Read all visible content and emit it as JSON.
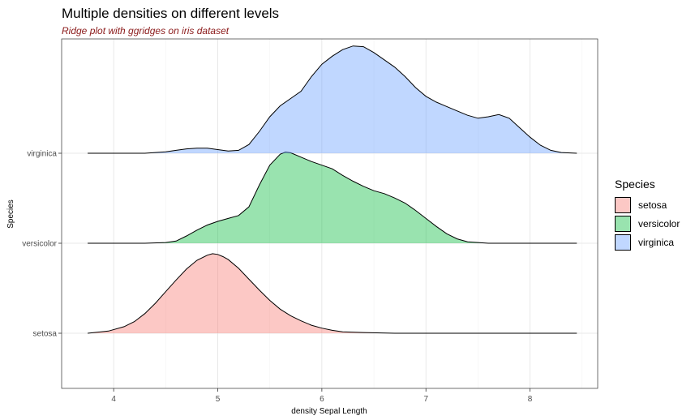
{
  "title": "Multiple densities on different levels",
  "subtitle": "Ridge plot with ggridges on iris dataset",
  "chart_data": {
    "type": "area",
    "title": "Multiple densities on different levels",
    "subtitle": "Ridge plot with ggridges on iris dataset",
    "xlabel": "density Sepal Length",
    "ylabel": "Species",
    "xlim": [
      3.5,
      8.65
    ],
    "x_ticks": [
      "4",
      "5",
      "6",
      "7",
      "8"
    ],
    "y_categories": [
      "setosa",
      "versicolor",
      "virginica"
    ],
    "grid": true,
    "legend": {
      "title": "Species",
      "position": "right"
    },
    "series": [
      {
        "name": "setosa",
        "color": "#f8766d",
        "x": [
          3.75,
          3.95,
          4.1,
          4.2,
          4.3,
          4.4,
          4.5,
          4.6,
          4.7,
          4.8,
          4.9,
          4.95,
          5.0,
          5.05,
          5.1,
          5.2,
          5.3,
          5.4,
          5.5,
          5.6,
          5.7,
          5.8,
          5.9,
          6.0,
          6.1,
          6.2,
          6.4,
          6.7,
          7.0,
          7.5,
          8.0,
          8.45
        ],
        "y": [
          0.0,
          0.03,
          0.09,
          0.16,
          0.27,
          0.41,
          0.57,
          0.73,
          0.88,
          1.0,
          1.07,
          1.09,
          1.08,
          1.05,
          1.01,
          0.89,
          0.74,
          0.59,
          0.45,
          0.33,
          0.24,
          0.17,
          0.11,
          0.07,
          0.04,
          0.02,
          0.01,
          0.0,
          0.0,
          0.0,
          0.0,
          0.0
        ]
      },
      {
        "name": "versicolor",
        "color": "#00ba38",
        "x": [
          3.75,
          4.3,
          4.5,
          4.6,
          4.7,
          4.8,
          4.9,
          5.0,
          5.1,
          5.2,
          5.3,
          5.4,
          5.5,
          5.6,
          5.65,
          5.7,
          5.8,
          5.9,
          6.0,
          6.1,
          6.2,
          6.3,
          6.4,
          6.5,
          6.6,
          6.7,
          6.8,
          6.9,
          7.0,
          7.1,
          7.2,
          7.3,
          7.4,
          7.6,
          8.0,
          8.45
        ],
        "y": [
          0.0,
          0.0,
          0.01,
          0.03,
          0.1,
          0.18,
          0.25,
          0.3,
          0.34,
          0.38,
          0.5,
          0.8,
          1.07,
          1.22,
          1.25,
          1.24,
          1.18,
          1.12,
          1.07,
          1.02,
          0.93,
          0.85,
          0.78,
          0.72,
          0.68,
          0.62,
          0.55,
          0.45,
          0.34,
          0.23,
          0.13,
          0.06,
          0.02,
          0.0,
          0.0,
          0.0
        ]
      },
      {
        "name": "virginica",
        "color": "#619cff",
        "x": [
          3.75,
          4.3,
          4.5,
          4.6,
          4.7,
          4.8,
          4.9,
          5.0,
          5.1,
          5.2,
          5.3,
          5.4,
          5.5,
          5.6,
          5.7,
          5.8,
          5.9,
          6.0,
          6.1,
          6.2,
          6.3,
          6.4,
          6.5,
          6.6,
          6.7,
          6.8,
          6.9,
          7.0,
          7.1,
          7.2,
          7.3,
          7.4,
          7.5,
          7.6,
          7.7,
          7.8,
          7.9,
          8.0,
          8.1,
          8.2,
          8.3,
          8.45
        ],
        "y": [
          0.0,
          0.0,
          0.02,
          0.04,
          0.06,
          0.07,
          0.07,
          0.05,
          0.03,
          0.04,
          0.12,
          0.3,
          0.5,
          0.65,
          0.75,
          0.85,
          1.05,
          1.22,
          1.33,
          1.42,
          1.47,
          1.46,
          1.38,
          1.28,
          1.18,
          1.05,
          0.9,
          0.78,
          0.7,
          0.64,
          0.58,
          0.52,
          0.48,
          0.5,
          0.53,
          0.48,
          0.35,
          0.22,
          0.11,
          0.04,
          0.01,
          0.0
        ]
      }
    ]
  }
}
